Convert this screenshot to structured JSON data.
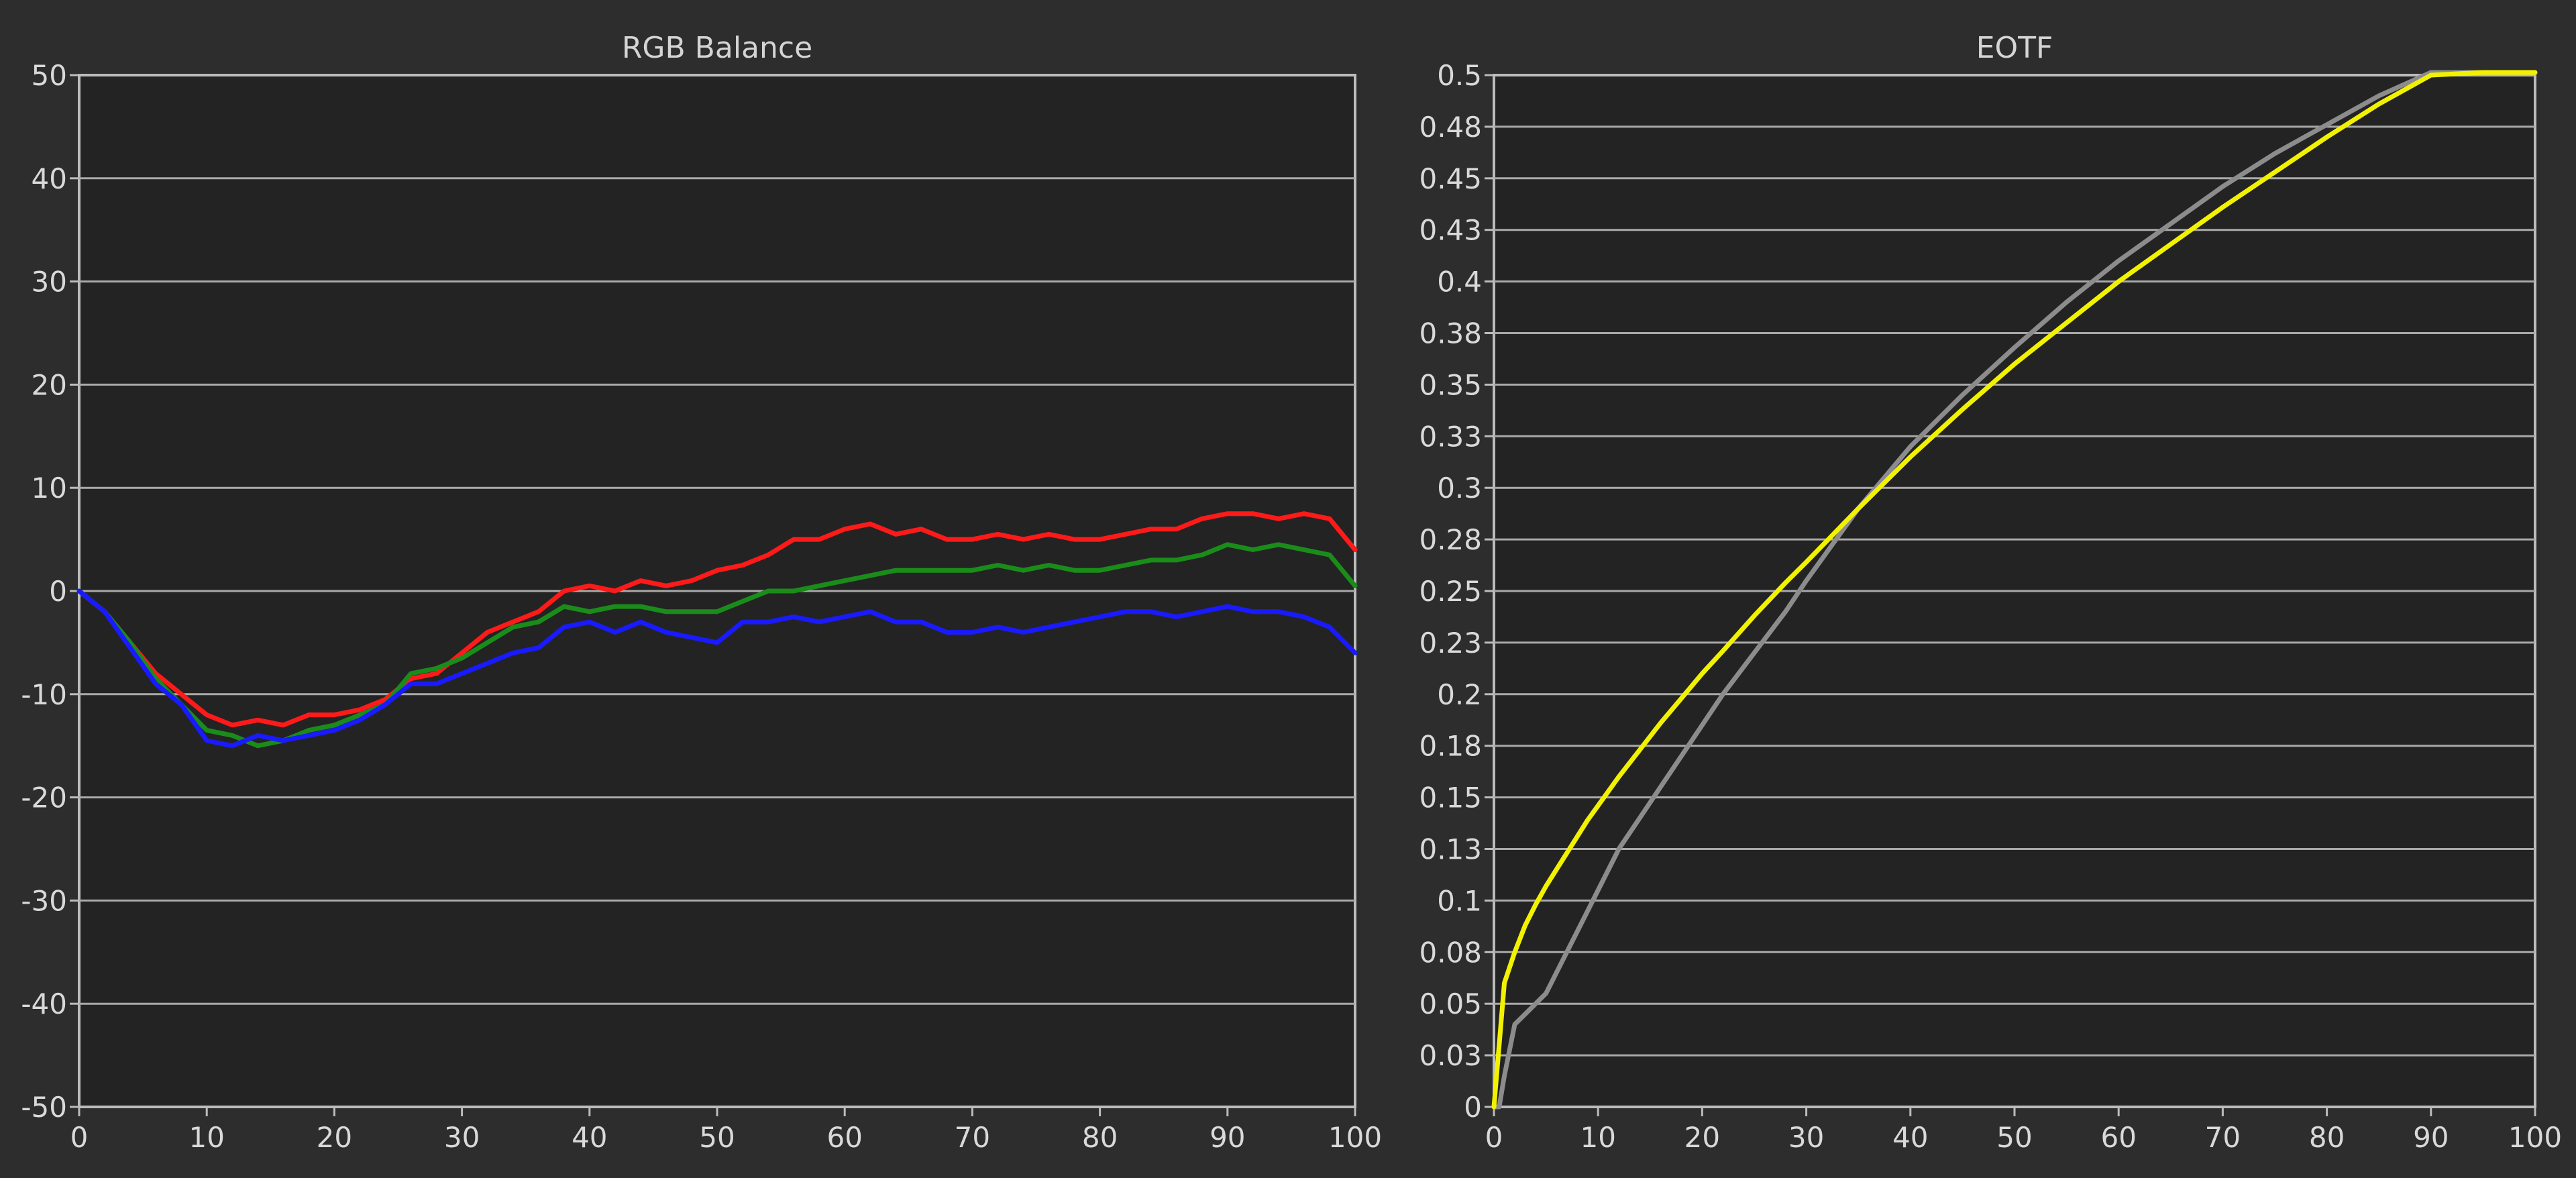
{
  "chart_data": [
    {
      "type": "line",
      "title": "RGB Balance",
      "xlabel": "",
      "ylabel": "",
      "xlim": [
        0,
        100
      ],
      "ylim": [
        -50,
        50
      ],
      "grid": true,
      "x_ticks": [
        0,
        10,
        20,
        30,
        40,
        50,
        60,
        70,
        80,
        90,
        100
      ],
      "y_ticks": [
        50,
        40,
        30,
        20,
        10,
        0,
        -10,
        -20,
        -30,
        -40,
        -50
      ],
      "x_tick_labels": [
        "0",
        "10",
        "20",
        "30",
        "40",
        "50",
        "60",
        "70",
        "80",
        "90",
        "100"
      ],
      "y_tick_labels": [
        "50",
        "40",
        "30",
        "20",
        "10",
        "0",
        "-10",
        "-20",
        "-30",
        "-40",
        "-50"
      ],
      "series": [
        {
          "color": "#ff1a1a",
          "x": [
            0,
            2,
            4,
            6,
            8,
            10,
            12,
            14,
            16,
            18,
            20,
            22,
            24,
            26,
            28,
            30,
            32,
            34,
            36,
            38,
            40,
            42,
            44,
            46,
            48,
            50,
            52,
            54,
            56,
            58,
            60,
            62,
            64,
            66,
            68,
            70,
            72,
            74,
            76,
            78,
            80,
            82,
            84,
            86,
            88,
            90,
            92,
            94,
            96,
            98,
            100
          ],
          "values": [
            0,
            -2,
            -5,
            -8,
            -10,
            -12,
            -13,
            -12.5,
            -13,
            -12,
            -12,
            -11.5,
            -10.5,
            -8.5,
            -8,
            -6,
            -4,
            -3,
            -2,
            0,
            0.5,
            0,
            1,
            0.5,
            1,
            2,
            2.5,
            3.5,
            5,
            5,
            6,
            6.5,
            5.5,
            6,
            5,
            5,
            5.5,
            5,
            5.5,
            5,
            5,
            5.5,
            6,
            6,
            7,
            7.5,
            7.5,
            7,
            7.5,
            7,
            4
          ]
        },
        {
          "color": "#1a8c1a",
          "x": [
            0,
            2,
            4,
            6,
            8,
            10,
            12,
            14,
            16,
            18,
            20,
            22,
            24,
            26,
            28,
            30,
            32,
            34,
            36,
            38,
            40,
            42,
            44,
            46,
            48,
            50,
            52,
            54,
            56,
            58,
            60,
            62,
            64,
            66,
            68,
            70,
            72,
            74,
            76,
            78,
            80,
            82,
            84,
            86,
            88,
            90,
            92,
            94,
            96,
            98,
            100
          ],
          "values": [
            0,
            -2,
            -5,
            -8.5,
            -11,
            -13.5,
            -14,
            -15,
            -14.5,
            -13.5,
            -13,
            -12,
            -11,
            -8,
            -7.5,
            -6.5,
            -5,
            -3.5,
            -3,
            -1.5,
            -2,
            -1.5,
            -1.5,
            -2,
            -2,
            -2,
            -1,
            0,
            0,
            0.5,
            1,
            1.5,
            2,
            2,
            2,
            2,
            2.5,
            2,
            2.5,
            2,
            2,
            2.5,
            3,
            3,
            3.5,
            4.5,
            4,
            4.5,
            4,
            3.5,
            0.5
          ]
        },
        {
          "color": "#1a1aff",
          "x": [
            0,
            2,
            4,
            6,
            8,
            10,
            12,
            14,
            16,
            18,
            20,
            22,
            24,
            26,
            28,
            30,
            32,
            34,
            36,
            38,
            40,
            42,
            44,
            46,
            48,
            50,
            52,
            54,
            56,
            58,
            60,
            62,
            64,
            66,
            68,
            70,
            72,
            74,
            76,
            78,
            80,
            82,
            84,
            86,
            88,
            90,
            92,
            94,
            96,
            98,
            100
          ],
          "values": [
            0,
            -2,
            -5.5,
            -9,
            -11,
            -14.5,
            -15,
            -14,
            -14.5,
            -14,
            -13.5,
            -12.5,
            -11,
            -9,
            -9,
            -8,
            -7,
            -6,
            -5.5,
            -3.5,
            -3,
            -4,
            -3,
            -4,
            -4.5,
            -5,
            -3,
            -3,
            -2.5,
            -3,
            -2.5,
            -2,
            -3,
            -3,
            -4,
            -4,
            -3.5,
            -4,
            -3.5,
            -3,
            -2.5,
            -2,
            -2,
            -2.5,
            -2,
            -1.5,
            -2,
            -2,
            -2.5,
            -3.5,
            -6
          ]
        }
      ]
    },
    {
      "type": "line",
      "title": "EOTF",
      "xlabel": "",
      "ylabel": "",
      "xlim": [
        0,
        100
      ],
      "ylim": [
        0,
        0.5
      ],
      "grid": true,
      "x_ticks": [
        0,
        10,
        20,
        30,
        40,
        50,
        60,
        70,
        80,
        90,
        100
      ],
      "y_ticks": [
        0.5,
        0.475,
        0.45,
        0.425,
        0.4,
        0.375,
        0.35,
        0.325,
        0.3,
        0.275,
        0.25,
        0.225,
        0.2,
        0.175,
        0.15,
        0.125,
        0.1,
        0.075,
        0.05,
        0.025,
        0
      ],
      "x_tick_labels": [
        "0",
        "10",
        "20",
        "30",
        "40",
        "50",
        "60",
        "70",
        "80",
        "90",
        "100"
      ],
      "y_tick_labels": [
        "0.5",
        "0.48",
        "0.45",
        "0.43",
        "0.4",
        "0.38",
        "0.35",
        "0.33",
        "0.3",
        "0.28",
        "0.25",
        "0.23",
        "0.2",
        "0.18",
        "0.15",
        "0.13",
        "0.1",
        "0.08",
        "0.05",
        "0.03",
        "0"
      ],
      "series": [
        {
          "color": "#8c8c8c",
          "x": [
            0,
            0.5,
            1,
            2,
            3,
            4,
            5,
            6,
            7,
            8,
            9,
            10,
            12,
            14,
            16,
            18,
            20,
            22,
            25,
            28,
            30,
            35,
            40,
            45,
            50,
            55,
            60,
            65,
            70,
            75,
            80,
            85,
            90,
            95,
            100
          ],
          "values": [
            0,
            0,
            0.015,
            0.04,
            0.045,
            0.05,
            0.055,
            0.065,
            0.075,
            0.085,
            0.095,
            0.105,
            0.125,
            0.14,
            0.155,
            0.17,
            0.185,
            0.2,
            0.22,
            0.24,
            0.255,
            0.29,
            0.32,
            0.345,
            0.368,
            0.39,
            0.41,
            0.428,
            0.446,
            0.462,
            0.476,
            0.49,
            0.502,
            0.51,
            0.52
          ]
        },
        {
          "color": "#f2f200",
          "x": [
            0,
            0.5,
            1,
            2,
            3,
            4,
            5,
            6,
            7,
            8,
            9,
            10,
            12,
            14,
            16,
            18,
            20,
            22,
            25,
            28,
            30,
            35,
            40,
            45,
            50,
            55,
            60,
            65,
            70,
            75,
            80,
            85,
            90,
            95,
            100
          ],
          "values": [
            0,
            0.03,
            0.06,
            0.075,
            0.088,
            0.098,
            0.107,
            0.115,
            0.123,
            0.131,
            0.139,
            0.146,
            0.16,
            0.173,
            0.186,
            0.198,
            0.21,
            0.221,
            0.238,
            0.254,
            0.264,
            0.29,
            0.315,
            0.338,
            0.36,
            0.38,
            0.4,
            0.418,
            0.436,
            0.453,
            0.47,
            0.486,
            0.5,
            0.512,
            0.522
          ]
        }
      ]
    }
  ]
}
